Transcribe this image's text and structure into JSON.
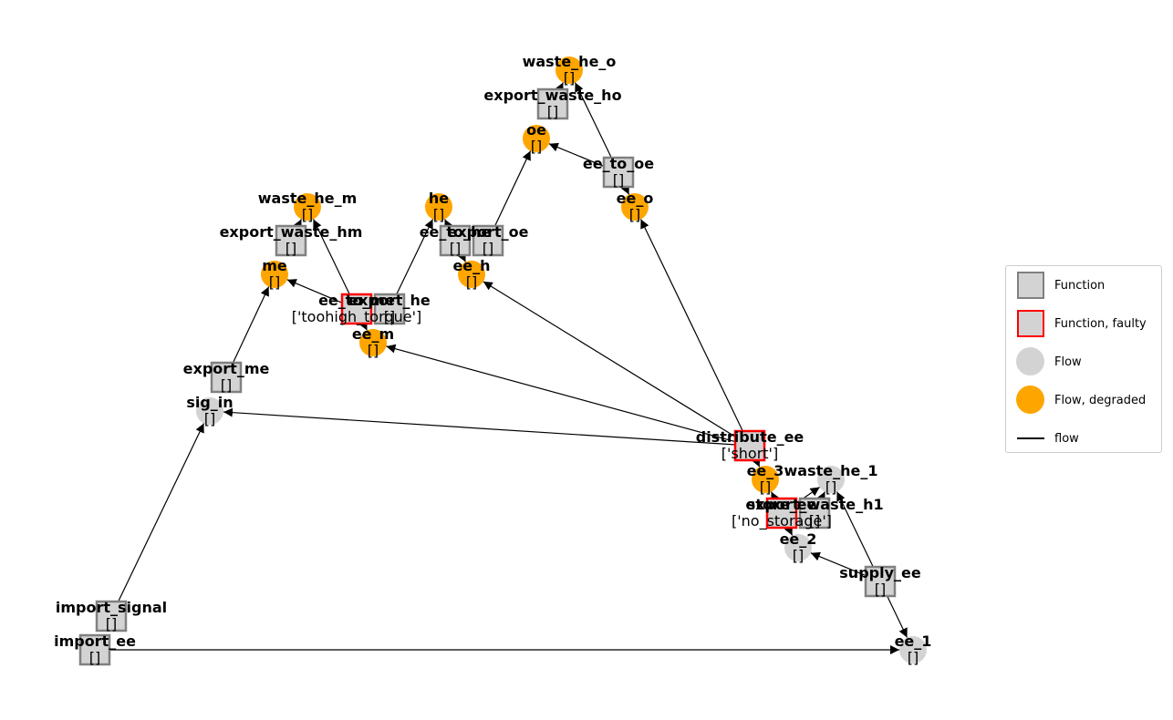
{
  "colors": {
    "function_fill": "#d3d3d3",
    "function_border": "#808080",
    "faulty_border": "#ff0000",
    "flow_nominal": "#d3d3d3",
    "flow_degraded": "#ffa500",
    "edge": "#000000"
  },
  "legend": {
    "function": "Function",
    "function_faulty": "Function, faulty",
    "flow": "Flow",
    "flow_degraded": "Flow, degraded",
    "edge": "flow"
  },
  "nodes": [
    {
      "id": "import_ee",
      "kind": "function",
      "faulty": false,
      "label": "import_ee",
      "state": "[]"
    },
    {
      "id": "import_signal",
      "kind": "function",
      "faulty": false,
      "label": "import_signal",
      "state": "[]"
    },
    {
      "id": "supply_ee",
      "kind": "function",
      "faulty": false,
      "label": "supply_ee",
      "state": "[]"
    },
    {
      "id": "store_ee",
      "kind": "function",
      "faulty": true,
      "label": "store_ee",
      "state": "['no_storage']"
    },
    {
      "id": "export_waste_h1",
      "kind": "function",
      "faulty": false,
      "label": "export_waste_h1",
      "state": "[]"
    },
    {
      "id": "distribute_ee",
      "kind": "function",
      "faulty": true,
      "label": "distribute_ee",
      "state": "['short']"
    },
    {
      "id": "export_me",
      "kind": "function",
      "faulty": false,
      "label": "export_me",
      "state": "[]"
    },
    {
      "id": "ee_to_me",
      "kind": "function",
      "faulty": true,
      "label": "ee_to_me",
      "state": "['toohigh_torque']"
    },
    {
      "id": "export_he",
      "kind": "function",
      "faulty": false,
      "label": "export_he",
      "state": "[]"
    },
    {
      "id": "export_waste_hm",
      "kind": "function",
      "faulty": false,
      "label": "export_waste_hm",
      "state": "[]"
    },
    {
      "id": "ee_to_he",
      "kind": "function",
      "faulty": false,
      "label": "ee_to_he",
      "state": "[]"
    },
    {
      "id": "export_oe",
      "kind": "function",
      "faulty": false,
      "label": "export_oe",
      "state": "[]"
    },
    {
      "id": "ee_to_oe",
      "kind": "function",
      "faulty": false,
      "label": "ee_to_oe",
      "state": "[]"
    },
    {
      "id": "export_waste_ho",
      "kind": "function",
      "faulty": false,
      "label": "export_waste_ho",
      "state": "[]"
    },
    {
      "id": "ee_1",
      "kind": "flow",
      "degraded": false,
      "label": "ee_1",
      "state": "[]"
    },
    {
      "id": "ee_2",
      "kind": "flow",
      "degraded": false,
      "label": "ee_2",
      "state": "[]"
    },
    {
      "id": "ee_3",
      "kind": "flow",
      "degraded": true,
      "label": "ee_3",
      "state": "[]"
    },
    {
      "id": "waste_he_1",
      "kind": "flow",
      "degraded": false,
      "label": "waste_he_1",
      "state": "[]"
    },
    {
      "id": "sig_in",
      "kind": "flow",
      "degraded": false,
      "label": "sig_in",
      "state": "[]"
    },
    {
      "id": "ee_m",
      "kind": "flow",
      "degraded": true,
      "label": "ee_m",
      "state": "[]"
    },
    {
      "id": "me",
      "kind": "flow",
      "degraded": true,
      "label": "me",
      "state": "[]"
    },
    {
      "id": "waste_he_m",
      "kind": "flow",
      "degraded": true,
      "label": "waste_he_m",
      "state": "[]"
    },
    {
      "id": "ee_h",
      "kind": "flow",
      "degraded": true,
      "label": "ee_h",
      "state": "[]"
    },
    {
      "id": "he",
      "kind": "flow",
      "degraded": true,
      "label": "he",
      "state": "[]"
    },
    {
      "id": "ee_o",
      "kind": "flow",
      "degraded": true,
      "label": "ee_o",
      "state": "[]"
    },
    {
      "id": "oe",
      "kind": "flow",
      "degraded": true,
      "label": "oe",
      "state": "[]"
    },
    {
      "id": "waste_he_o",
      "kind": "flow",
      "degraded": true,
      "label": "waste_he_o",
      "state": "[]"
    }
  ],
  "edges": [
    {
      "from": "import_ee",
      "to": "ee_1"
    },
    {
      "from": "supply_ee",
      "to": "ee_1"
    },
    {
      "from": "supply_ee",
      "to": "ee_2"
    },
    {
      "from": "supply_ee",
      "to": "waste_he_1"
    },
    {
      "from": "store_ee",
      "to": "ee_2"
    },
    {
      "from": "store_ee",
      "to": "ee_3"
    },
    {
      "from": "store_ee",
      "to": "waste_he_1"
    },
    {
      "from": "export_waste_h1",
      "to": "waste_he_1"
    },
    {
      "from": "distribute_ee",
      "to": "ee_3"
    },
    {
      "from": "distribute_ee",
      "to": "sig_in"
    },
    {
      "from": "distribute_ee",
      "to": "ee_m"
    },
    {
      "from": "distribute_ee",
      "to": "ee_h"
    },
    {
      "from": "distribute_ee",
      "to": "ee_o"
    },
    {
      "from": "import_signal",
      "to": "sig_in"
    },
    {
      "from": "export_me",
      "to": "me"
    },
    {
      "from": "ee_to_me",
      "to": "me"
    },
    {
      "from": "ee_to_me",
      "to": "ee_m"
    },
    {
      "from": "ee_to_me",
      "to": "waste_he_m"
    },
    {
      "from": "export_waste_hm",
      "to": "waste_he_m"
    },
    {
      "from": "export_he",
      "to": "he"
    },
    {
      "from": "ee_to_he",
      "to": "he"
    },
    {
      "from": "ee_to_he",
      "to": "ee_h"
    },
    {
      "from": "export_oe",
      "to": "oe"
    },
    {
      "from": "ee_to_oe",
      "to": "oe"
    },
    {
      "from": "ee_to_oe",
      "to": "ee_o"
    },
    {
      "from": "ee_to_oe",
      "to": "waste_he_o"
    },
    {
      "from": "export_waste_ho",
      "to": "waste_he_o"
    }
  ]
}
